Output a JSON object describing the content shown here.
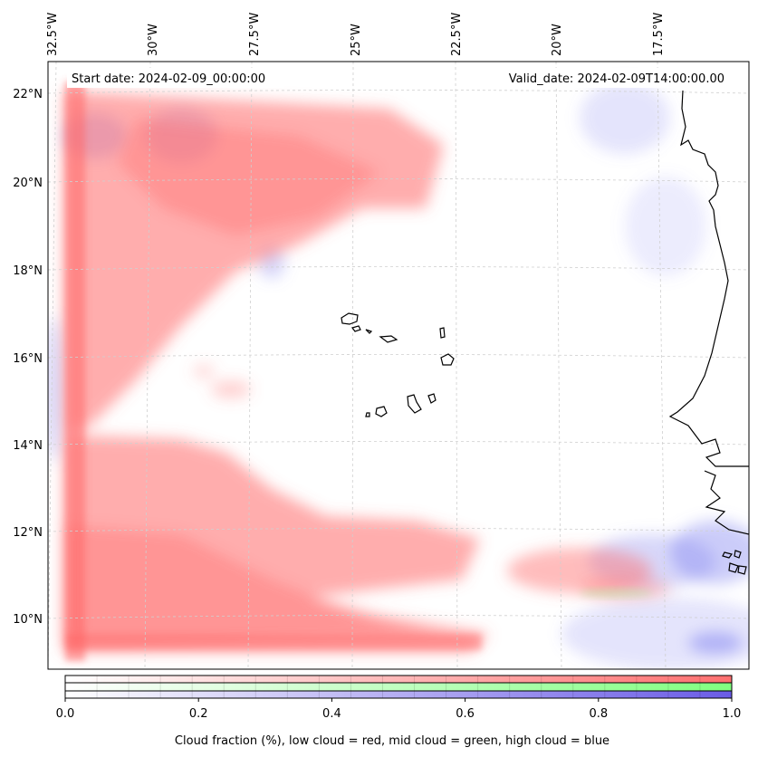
{
  "map": {
    "start_label": "Start date: 2024-02-09_00:00:00",
    "valid_label": "Valid_date: 2024-02-09T14:00:00.00",
    "lon_ticks": [
      "32.5°W",
      "30°W",
      "27.5°W",
      "25°W",
      "22.5°W",
      "20°W",
      "17.5°W"
    ],
    "lat_ticks": [
      "22°N",
      "20°N",
      "18°N",
      "16°N",
      "14°N",
      "12°N",
      "10°N"
    ],
    "extent": {
      "lon_min": -33.0,
      "lon_max": -15.5,
      "lat_min": 8.8,
      "lat_max": 22.8
    }
  },
  "colorbar": {
    "ticks": [
      "0.0",
      "0.2",
      "0.4",
      "0.6",
      "0.8",
      "1.0"
    ],
    "label": "Cloud fraction (%), low cloud = red, mid cloud = green, high cloud = blue",
    "colors": {
      "low": "#ff7070",
      "mid": "#80ff80",
      "high": "#6a5ce6"
    }
  }
}
